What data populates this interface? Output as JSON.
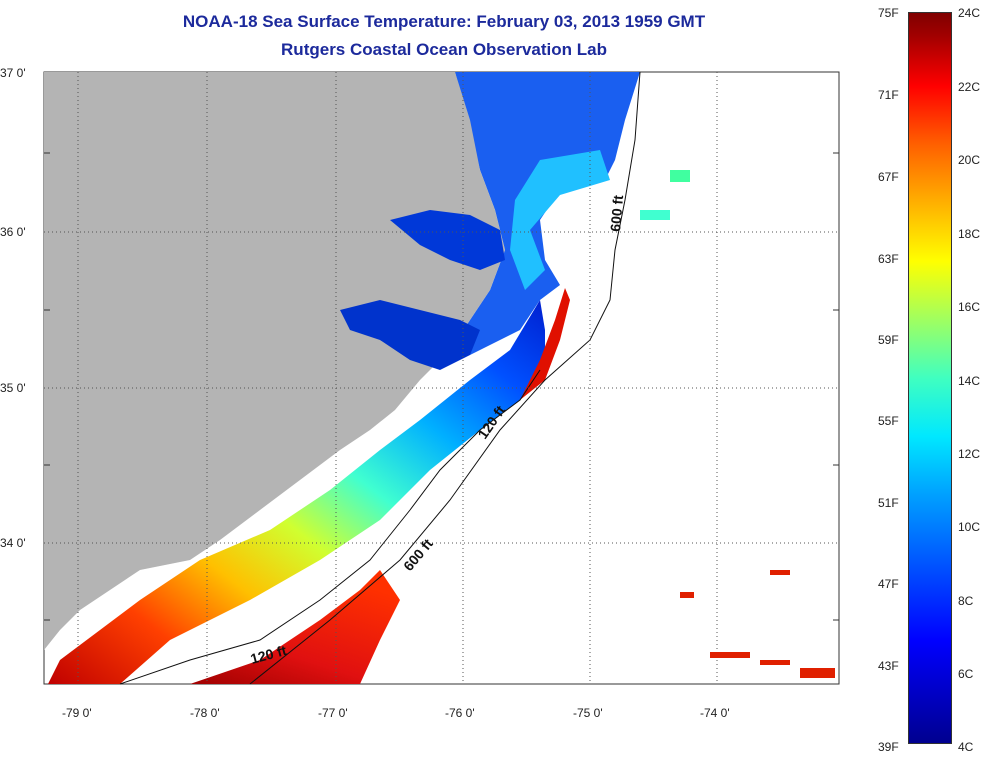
{
  "title": {
    "line1": "NOAA-18 Sea Surface Temperature:  February 03, 2013 1959 GMT",
    "line2": "Rutgers Coastal Ocean Observation Lab"
  },
  "map": {
    "lat_labels": [
      "37 0'",
      "36 0'",
      "35 0'",
      "34 0'"
    ],
    "lon_labels": [
      "-79 0'",
      "-78 0'",
      "-77 0'",
      "-76 0'",
      "-75 0'",
      "-74 0'"
    ],
    "isobath_labels": [
      "600 ft",
      "120 ft",
      "600 ft",
      "120 ft"
    ],
    "colors": {
      "land": "#b4b4b4",
      "cloud": "#ffffff",
      "grid": "#555555"
    }
  },
  "colorbar": {
    "fahrenheit": [
      "75F",
      "71F",
      "67F",
      "63F",
      "59F",
      "55F",
      "51F",
      "47F",
      "43F",
      "39F"
    ],
    "celsius": [
      "24C",
      "22C",
      "20C",
      "18C",
      "16C",
      "14C",
      "12C",
      "10C",
      "8C",
      "6C",
      "4C"
    ]
  }
}
